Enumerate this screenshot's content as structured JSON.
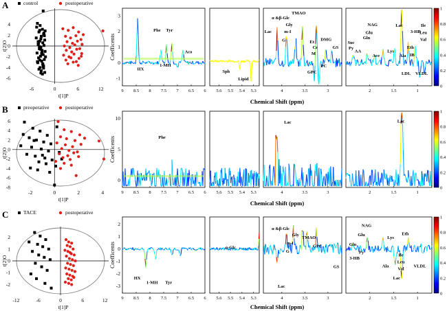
{
  "colors": {
    "control": "#000000",
    "postoperative": "#e0201b",
    "colorbar": [
      "#00007f",
      "#0000ff",
      "#007fff",
      "#00ffff",
      "#7fff7f",
      "#ffff00",
      "#ff7f00",
      "#ff0000",
      "#7f0000"
    ]
  },
  "common": {
    "y_label": "Coefficents",
    "x_label": "Chemical Shift (ppm)"
  },
  "panels": [
    {
      "letter": "A",
      "score_plot": {
        "legend": [
          "control",
          "postoperative"
        ],
        "xlabel": "t[1]P",
        "ylabel": "t[2]O",
        "xticks": [
          "-6",
          "0",
          "6",
          "12"
        ],
        "yticks": [
          "4",
          "2",
          "0",
          "-2",
          "-4",
          "-6"
        ]
      },
      "loading_y_ticks": [
        "3",
        "2",
        "1",
        "0",
        "-1"
      ],
      "colorbar_ticks": [
        "1",
        "0.8",
        "0.6",
        "0.4",
        "0.2",
        "0"
      ],
      "subplots": [
        {
          "xticks": [
            "9",
            "8.5",
            "8",
            "7.5",
            "7",
            "6.5",
            "6"
          ],
          "labels": [
            "Phe",
            "Tyr",
            "Aco",
            "HX",
            "1-MH"
          ]
        },
        {
          "xticks": [
            "5.6",
            "5.5",
            "5.4",
            "5.3"
          ],
          "labels": [
            "Sph",
            "Lipid"
          ]
        },
        {
          "xticks": [
            "4",
            "3.5",
            "3"
          ],
          "labels": [
            "α &β-Glc",
            "TMAO",
            "Gly",
            "m-I",
            "G",
            "Lac",
            "Et",
            "Cr",
            "DMG",
            "M",
            "GS",
            "GPC",
            "PC"
          ]
        },
        {
          "xticks": [
            "2",
            "1.5",
            "1"
          ],
          "labels": [
            "NAG",
            "Glu",
            "Gln",
            "Suc",
            "Py",
            "AA",
            "Ace",
            "Lys",
            "Ala",
            "Lac",
            "3-HB",
            "Ile",
            "Leu",
            "Val",
            "Eth",
            "IB",
            "LDL",
            "VLDL"
          ]
        }
      ],
      "chart_data": {
        "type": "scatter",
        "title": "A",
        "xlabel": "t[1]P",
        "ylabel": "t[2]O",
        "xlim": [
          -11,
          14
        ],
        "ylim": [
          -7,
          7
        ],
        "series": [
          {
            "name": "control",
            "x": [
              -4.5,
              -3.8,
              -3.2,
              -4.1,
              -2.9,
              -3.5,
              -4.8,
              -2.6,
              -3.9,
              -3.1,
              -4.3,
              -2.8,
              -3.6,
              -4.0,
              -3.3,
              -2.5,
              -4.6,
              -3.0,
              -3.7,
              -4.2,
              -2.7,
              -3.4,
              -4.4,
              -3.1,
              -2.9,
              -3.8,
              -4.1,
              -3.5,
              -2.6,
              -3.2,
              -4.7,
              -3.9,
              -2.8,
              -3.6,
              -4.0,
              -3.3,
              -2.4,
              -4.5,
              -3.0,
              -3.7,
              -4.2,
              -2.7,
              -3.4,
              -3.9,
              -3.1,
              -4.3,
              -2.9,
              -3.6,
              -2.5,
              -3.0
            ],
            "y": [
              4.2,
              3.8,
              3.1,
              2.6,
              2.2,
              1.8,
              1.5,
              1.1,
              0.9,
              0.6,
              0.3,
              0.1,
              -0.2,
              -0.5,
              -0.8,
              -1.0,
              -1.3,
              -1.6,
              -1.9,
              -2.2,
              -2.5,
              -2.8,
              -3.1,
              -3.4,
              -3.7,
              -4.0,
              -4.3,
              -4.6,
              -4.9,
              -5.2,
              3.5,
              2.9,
              2.4,
              1.3,
              -0.1,
              -1.1,
              -2.0,
              -2.9,
              -3.8,
              -0.6,
              0.5,
              1.9,
              -1.4,
              -2.6,
              -3.3,
              0.8,
              -4.1,
              -5.0,
              2.8,
              6.5
            ]
          },
          {
            "name": "postoperative",
            "x": [
              2.1,
              3.5,
              4.8,
              6.2,
              7.4,
              2.8,
              4.1,
              5.5,
              6.8,
              3.2,
              4.6,
              5.9,
              7.1,
              2.5,
              3.9,
              5.2,
              6.5,
              3.0,
              4.4,
              5.7,
              7.0,
              2.3,
              3.7,
              5.0,
              6.3,
              2.9,
              4.2,
              5.6,
              6.9,
              3.4,
              4.8,
              6.1,
              12.5
            ],
            "y": [
              3.2,
              2.9,
              3.4,
              2.6,
              2.1,
              1.8,
              1.5,
              1.9,
              1.2,
              0.8,
              0.5,
              0.9,
              0.3,
              0.0,
              -0.3,
              0.2,
              -0.5,
              -0.8,
              -1.1,
              -0.6,
              -1.4,
              -1.7,
              -2.0,
              -1.5,
              -2.3,
              -2.6,
              -2.2,
              -2.9,
              -1.9,
              -3.3,
              -3.0,
              -3.6,
              2.8
            ]
          }
        ]
      }
    },
    {
      "letter": "B",
      "score_plot": {
        "legend": [
          "preoperative",
          "postoperative"
        ],
        "xlabel": "t[1]P",
        "ylabel": "t[2]O",
        "xticks": [
          "-2",
          "0",
          "2",
          "4"
        ],
        "yticks": [
          "6",
          "4",
          "2",
          "0",
          "-2",
          "-4",
          "-6",
          "-8"
        ]
      },
      "loading_y_ticks": [
        "10",
        "5",
        "0"
      ],
      "colorbar_ticks": [
        "1",
        "0.8",
        "0.6",
        "0.4",
        "0.2",
        "0"
      ],
      "subplots": [
        {
          "xticks": [
            "9",
            "8.5",
            "8",
            "7.5",
            "7",
            "6.5",
            "6"
          ],
          "labels": [
            "Phe"
          ]
        },
        {
          "xticks": [
            "5.6",
            "5.5",
            "5.4",
            "5.3"
          ],
          "labels": []
        },
        {
          "xticks": [
            "4",
            "3.5",
            "3"
          ],
          "labels": [
            "Lac"
          ]
        },
        {
          "xticks": [
            "2",
            "1.5",
            "1"
          ],
          "labels": [
            "Lac"
          ]
        }
      ],
      "chart_data": {
        "type": "scatter",
        "title": "B",
        "xlabel": "t[1]P",
        "ylabel": "t[2]O",
        "xlim": [
          -3.5,
          4.5
        ],
        "ylim": [
          -8,
          6.5
        ],
        "series": [
          {
            "name": "preoperative",
            "x": [
              -2.5,
              -1.8,
              -1.2,
              -0.6,
              0.2,
              -2.1,
              -1.5,
              -0.9,
              -0.3,
              -2.8,
              -1.9,
              -1.1,
              -0.5,
              0.4,
              -2.3,
              -1.6,
              -0.8,
              -0.2,
              -1.3,
              -0.7,
              0.1,
              -2.0,
              -1.4,
              -0.4,
              0.6,
              -1.0,
              -2.6,
              0.0,
              -1.7
            ],
            "y": [
              5.8,
              4.5,
              3.9,
              3.0,
              4.8,
              2.5,
              2.0,
              1.6,
              1.2,
              0.8,
              0.5,
              0.1,
              -0.3,
              -0.6,
              -1.0,
              -1.4,
              -1.8,
              -2.2,
              -2.6,
              -3.0,
              -3.5,
              -3.9,
              -4.3,
              -4.8,
              -2.0,
              -1.2,
              3.2,
              -7.5,
              1.9
            ]
          },
          {
            "name": "postoperative",
            "x": [
              0.3,
              0.8,
              1.4,
              2.1,
              0.5,
              1.0,
              1.7,
              2.5,
              0.2,
              0.9,
              1.5,
              2.2,
              0.6,
              1.2,
              1.9,
              0.4,
              1.1,
              1.6,
              0.7,
              1.3,
              2.0,
              0.1,
              0.8,
              1.4,
              3.7,
              4.1,
              0.5,
              1.8
            ],
            "y": [
              5.9,
              4.2,
              3.8,
              3.1,
              2.7,
              2.3,
              1.9,
              2.4,
              1.4,
              1.0,
              0.6,
              1.1,
              0.2,
              -0.2,
              -0.5,
              -0.9,
              -1.3,
              -0.7,
              -1.7,
              -2.1,
              -1.5,
              -2.5,
              -2.9,
              -3.3,
              1.8,
              -2.0,
              -4.0,
              -5.5
            ]
          }
        ]
      }
    },
    {
      "letter": "C",
      "score_plot": {
        "legend": [
          "TACE",
          "postoperative"
        ],
        "xlabel": "t[1]P",
        "ylabel": "t[2]O",
        "xticks": [
          "-12",
          "-6",
          "0",
          "6",
          "12"
        ],
        "yticks": [
          "2",
          "1",
          "0",
          "-1",
          "-2"
        ]
      },
      "loading_y_ticks": [
        "2",
        "1",
        "0",
        "-1",
        "-2",
        "-3"
      ],
      "colorbar_ticks": [
        "1",
        "0.8",
        "0.6",
        "0.4",
        "0.2",
        "0"
      ],
      "subplots": [
        {
          "xticks": [
            "9",
            "8.5",
            "8",
            "7.5",
            "7",
            "6.5",
            "6"
          ],
          "labels": [
            "HX",
            "1-MH",
            "Tyr"
          ]
        },
        {
          "xticks": [
            "5.6",
            "5.5",
            "5.4",
            "5.3"
          ],
          "labels": [
            "α-Glc"
          ]
        },
        {
          "xticks": [
            "4",
            "3.5",
            "3"
          ],
          "labels": [
            "α &β-Glc",
            "Gly",
            "m-I",
            "G",
            "TMAO",
            "GPC",
            "GS",
            "Lac"
          ]
        },
        {
          "xticks": [
            "2",
            "1.5",
            "1"
          ],
          "labels": [
            "NAG",
            "Glu",
            "Gln",
            "Py",
            "3-HB",
            "Lys",
            "Ala",
            "Eth",
            "Ile",
            "Leu",
            "Val",
            "Lac",
            "VLDL"
          ]
        }
      ],
      "chart_data": {
        "type": "scatter",
        "title": "C",
        "xlabel": "t[1]P",
        "ylabel": "t[2]O",
        "xlim": [
          -13,
          13
        ],
        "ylim": [
          -2.9,
          2.9
        ],
        "series": [
          {
            "name": "TACE",
            "x": [
              -7.0,
              -5.5,
              -4.0,
              -8.5,
              -6.2,
              -4.8,
              -3.2,
              -7.6,
              -5.9,
              -4.4,
              -2.8,
              -6.8,
              -5.1,
              -3.6,
              -8.0,
              -6.5,
              -4.2,
              -2.5
            ],
            "y": [
              2.4,
              2.1,
              1.8,
              1.6,
              1.4,
              1.2,
              1.0,
              0.8,
              0.5,
              0.3,
              0.1,
              -0.2,
              -0.5,
              -0.8,
              -1.1,
              -1.5,
              -1.9,
              -2.3
            ]
          },
          {
            "name": "postoperative",
            "x": [
              1.5,
              2.2,
              3.0,
              1.8,
              2.6,
              3.4,
              1.2,
              2.0,
              2.9,
              3.7,
              1.6,
              2.4,
              3.2,
              4.0,
              1.9,
              2.7,
              3.5,
              1.4,
              2.3,
              3.1,
              3.9,
              1.7,
              2.5,
              3.3,
              2.1,
              2.9,
              3.6,
              1.3,
              2.2,
              3.0,
              2.6
            ],
            "y": [
              1.8,
              1.6,
              1.5,
              1.3,
              1.2,
              1.0,
              0.9,
              0.8,
              0.6,
              0.5,
              0.4,
              0.2,
              0.1,
              0.0,
              -0.2,
              -0.3,
              -0.4,
              -0.6,
              -0.7,
              -0.8,
              -0.9,
              -1.1,
              -1.2,
              -1.3,
              -1.5,
              -1.6,
              -1.4,
              -1.8,
              -1.9,
              -2.0,
              0.7
            ]
          }
        ]
      }
    }
  ]
}
